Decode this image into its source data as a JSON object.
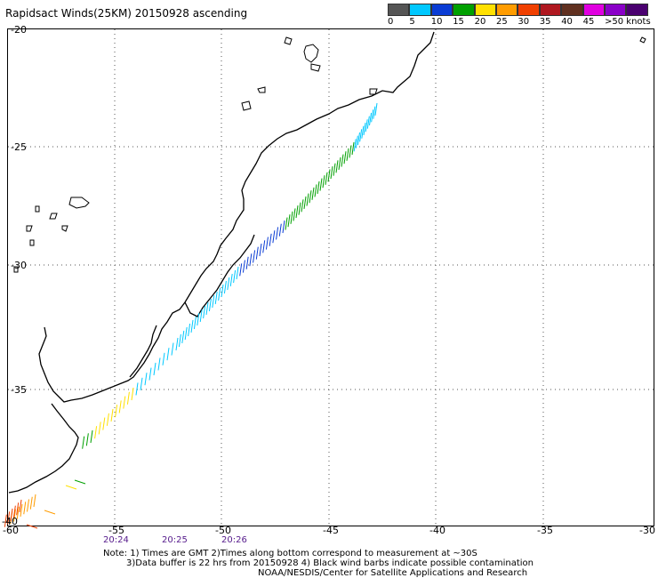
{
  "header": {
    "title": "Rapidsact Winds(25KM) 20150928 ascending"
  },
  "legend": {
    "colors": [
      "#555555",
      "#00c8ff",
      "#0a3cd4",
      "#00a000",
      "#ffe000",
      "#ff9c00",
      "#f04000",
      "#b01820",
      "#603020",
      "#e000e0",
      "#8a00c8",
      "#4a0070"
    ],
    "labels": [
      "0",
      "5",
      "10",
      "15",
      "20",
      "25",
      "30",
      "35",
      "40",
      "45",
      ">50 knots"
    ]
  },
  "map": {
    "lat_ticks": [
      "-20",
      "-25",
      "-30",
      "-35",
      "-40"
    ],
    "lon_ticks": [
      "-60",
      "-55",
      "-50",
      "-45",
      "-40",
      "-35",
      "-30"
    ],
    "times": [
      "20:24",
      "20:25",
      "20:26"
    ]
  },
  "notes": {
    "line1": "Note: 1) Times are GMT 2)Times along bottom correspond to measurement at ~30S",
    "line2": "3)Data buffer is 22 hrs from 20150928 4) Black wind barbs indicate possible contamination",
    "line3": "NOAA/NESDIS/Center for Satellite Applications and Research"
  }
}
